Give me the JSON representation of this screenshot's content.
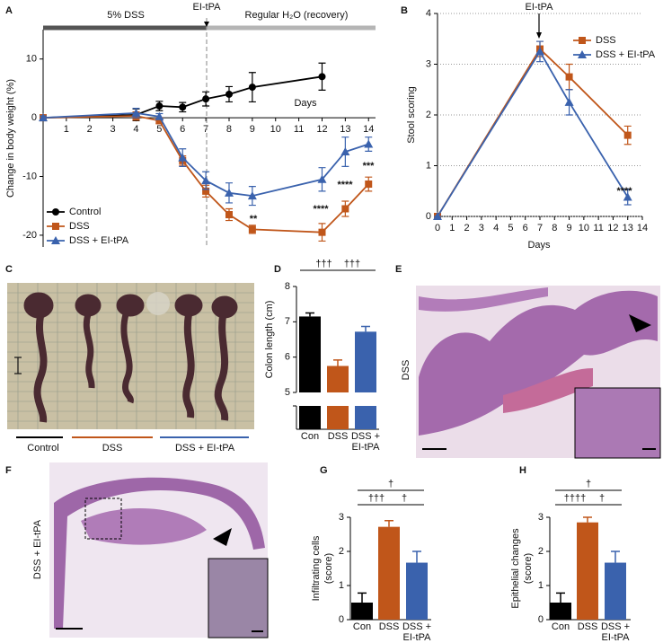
{
  "chart_data": [
    {
      "type": "line",
      "panel": "A",
      "y_label": "Change in body weight (%)",
      "x_label": "Days",
      "phases": [
        "5% DSS",
        "Regular H₂O (recovery)"
      ],
      "marker_label": "EI-tPA",
      "x": [
        0,
        4,
        5,
        6,
        7,
        8,
        9,
        12,
        13,
        14
      ],
      "series": [
        {
          "name": "Control",
          "color": "#000000",
          "marker": "circle",
          "values": [
            0,
            0.5,
            2,
            1.8,
            3.2,
            4,
            5.2,
            7,
            null,
            null
          ],
          "errors": [
            0.3,
            1,
            0.8,
            0.8,
            1.2,
            1.3,
            2.5,
            2.3,
            null,
            null
          ]
        },
        {
          "name": "DSS",
          "color": "#c0561a",
          "marker": "square",
          "values": [
            0,
            0.3,
            -0.5,
            -7.3,
            -12.5,
            -16.5,
            -19,
            -19.5,
            -15.5,
            -11.3
          ],
          "errors": [
            0.3,
            0.7,
            0.5,
            0.8,
            1,
            1,
            0.7,
            1.5,
            1.3,
            1.2
          ]
        },
        {
          "name": "DSS + EI-tPA",
          "color": "#3a62ad",
          "marker": "triangle",
          "values": [
            0,
            0.8,
            0.2,
            -6.8,
            -10.7,
            -12.8,
            -13.3,
            -10.5,
            -5.8,
            -4.5
          ],
          "errors": [
            0.3,
            0.8,
            0.5,
            1.5,
            1.5,
            1.7,
            1.6,
            2,
            2.5,
            1.2
          ]
        }
      ],
      "xlim": [
        0,
        14.3
      ],
      "ylim": [
        -22,
        15
      ],
      "xticks": [
        1,
        2,
        3,
        4,
        5,
        6,
        7,
        8,
        9,
        10,
        11,
        12,
        13,
        14
      ],
      "yticks": [
        -20,
        -10,
        0,
        10
      ],
      "legend": "lower left",
      "annotations": [
        "**",
        "****",
        "****",
        "***"
      ]
    },
    {
      "type": "line",
      "panel": "B",
      "y_label": "Stool scoring",
      "x_label": "Days",
      "marker_label": "EI-tPA",
      "x": [
        0,
        7,
        9,
        13
      ],
      "series": [
        {
          "name": "DSS",
          "color": "#c0561a",
          "marker": "square",
          "values": [
            0,
            3.3,
            2.75,
            1.6
          ],
          "errors": [
            0,
            0.15,
            0.25,
            0.18
          ]
        },
        {
          "name": "DSS + EI-tPA",
          "color": "#3a62ad",
          "marker": "triangle",
          "values": [
            0,
            3.25,
            2.25,
            0.38
          ],
          "errors": [
            0,
            0.2,
            0.25,
            0.15
          ]
        }
      ],
      "xlim": [
        0,
        14
      ],
      "ylim": [
        0,
        4
      ],
      "xticks": [
        0,
        1,
        2,
        3,
        4,
        5,
        6,
        7,
        8,
        9,
        10,
        11,
        12,
        13,
        14
      ],
      "yticks": [
        0,
        1,
        2,
        3,
        4
      ],
      "grid": true,
      "legend": "upper right",
      "annotations": [
        "****"
      ]
    },
    {
      "type": "bar",
      "panel": "D",
      "y_label": "Colon length (cm)",
      "categories": [
        "Con",
        "DSS",
        "DSS + EI-tPA"
      ],
      "values": [
        7.15,
        5.75,
        6.72
      ],
      "errors": [
        0.1,
        0.17,
        0.15
      ],
      "colors": [
        "#000000",
        "#c0561a",
        "#3a62ad"
      ],
      "ylim": [
        5,
        8
      ],
      "yticks": [
        5,
        6,
        7,
        8
      ],
      "axis_break": true,
      "annotations": [
        "†††",
        "†††"
      ]
    },
    {
      "type": "bar",
      "panel": "G",
      "y_label": [
        "Infiltrating cells",
        "(score)"
      ],
      "categories": [
        "Con",
        "DSS",
        "DSS + EI-tPA"
      ],
      "values": [
        0.5,
        2.72,
        1.67
      ],
      "errors": [
        0.28,
        0.18,
        0.33
      ],
      "colors": [
        "#000000",
        "#c0561a",
        "#3a62ad"
      ],
      "ylim": [
        0,
        3
      ],
      "yticks": [
        0,
        1,
        2,
        3
      ],
      "annotations": [
        "†",
        "†††",
        "†"
      ]
    },
    {
      "type": "bar",
      "panel": "H",
      "y_label": [
        "Epithelial changes",
        "(score)"
      ],
      "categories": [
        "Con",
        "DSS",
        "DSS + EI-tPA"
      ],
      "values": [
        0.5,
        2.85,
        1.67
      ],
      "errors": [
        0.28,
        0.15,
        0.33
      ],
      "colors": [
        "#000000",
        "#c0561a",
        "#3a62ad"
      ],
      "ylim": [
        0,
        3
      ],
      "yticks": [
        0,
        1,
        2,
        3
      ],
      "annotations": [
        "†",
        "††††",
        "†"
      ]
    }
  ],
  "images": [
    {
      "panel": "C",
      "labels": [
        "Control",
        "DSS",
        "DSS + EI-tPA"
      ]
    },
    {
      "panel": "E",
      "label": "DSS"
    },
    {
      "panel": "F",
      "label": "DSS + EI-tPA"
    }
  ]
}
